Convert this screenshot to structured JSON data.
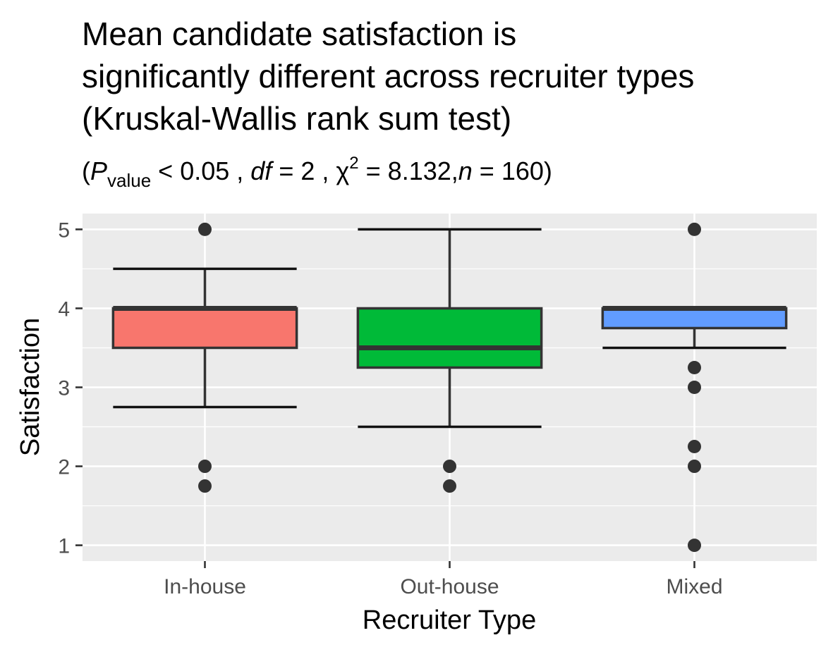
{
  "chart_data": {
    "type": "boxplot",
    "title_lines": [
      "Mean candidate satisfaction is",
      "significantly different across recruiter types",
      "(Kruskal-Wallis rank sum test)"
    ],
    "subtitle": {
      "open": "(",
      "p_symbol": "P",
      "p_subscript": "value",
      "p_rest": " < 0.05 , ",
      "df_symbol": "df",
      "df_rest": " = 2 , ",
      "chi_symbol": "χ",
      "chi_superscript": "2",
      "chi_rest": " = 8.132,",
      "n_symbol": "n",
      "n_rest": " = 160)"
    },
    "xlabel": "Recruiter Type",
    "ylabel": "Satisfaction",
    "ylim": [
      0.8,
      5.2
    ],
    "yticks": [
      "1",
      "2",
      "3",
      "4",
      "5"
    ],
    "grid": true,
    "categories": [
      "In-house",
      "Out-house",
      "Mixed"
    ],
    "colors": [
      "#F8766D",
      "#00BA38",
      "#619CFF"
    ],
    "boxes": [
      {
        "name": "In-house",
        "q1": 3.5,
        "median": 4.0,
        "q3": 4.0,
        "whisker_low": 2.75,
        "whisker_high": 4.5,
        "outliers": [
          5,
          2,
          1.75
        ]
      },
      {
        "name": "Out-house",
        "q1": 3.25,
        "median": 3.5,
        "q3": 4.0,
        "whisker_low": 2.5,
        "whisker_high": 5.0,
        "outliers": [
          2,
          1.75
        ]
      },
      {
        "name": "Mixed",
        "q1": 3.75,
        "median": 4.0,
        "q3": 4.0,
        "whisker_low": 3.5,
        "whisker_high": 4.0,
        "outliers": [
          5,
          3.25,
          3,
          2.25,
          2,
          1
        ]
      }
    ]
  }
}
